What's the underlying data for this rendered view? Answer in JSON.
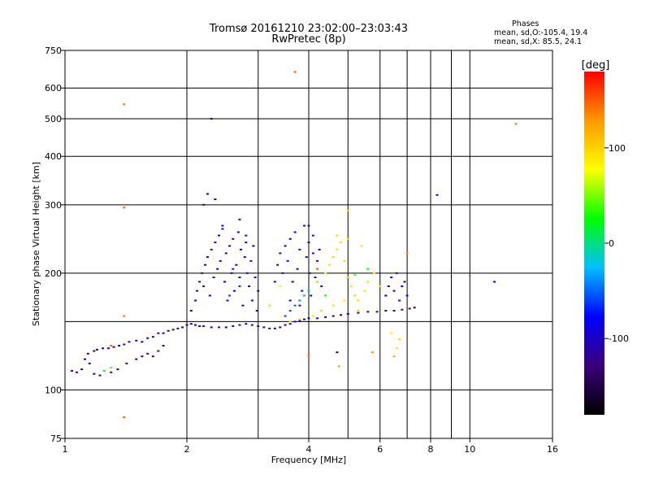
{
  "chart_data": {
    "type": "scatter",
    "title": "Tromsø 20161210 23:02:00–23:03:43",
    "subtitle": "RwPretec (8p)",
    "legend_header": "Phases",
    "legend_lines": [
      "mean, sd,O:-105.4, 19.4",
      "mean, sd,X:  85.5, 24.1"
    ],
    "xlabel": "Frequency [MHz]",
    "ylabel": "Stationary phase Virtual Height [km]",
    "x_scale": "log",
    "y_scale": "log",
    "xlim": [
      1,
      16
    ],
    "ylim": [
      75,
      750
    ],
    "x_ticks": [
      1,
      2,
      4,
      6,
      8,
      10,
      16
    ],
    "y_ticks": [
      75,
      100,
      200,
      300,
      400,
      500,
      600,
      750
    ],
    "x_grid": [
      1,
      2,
      3,
      4,
      5,
      6,
      7,
      8,
      9,
      10,
      16
    ],
    "y_grid": [
      100,
      150,
      200,
      300,
      400,
      500,
      600
    ],
    "grid": true,
    "colorbar": {
      "label": "[deg]",
      "range": [
        -180,
        180
      ],
      "ticks": [
        100,
        0,
        -100
      ],
      "colors": [
        "#000000",
        "#3a007a",
        "#0000ff",
        "#00bfff",
        "#00ff00",
        "#ffff00",
        "#ff9900",
        "#ff0000"
      ]
    },
    "series": [
      {
        "values": [
          [
            1.04,
            112,
            -120
          ],
          [
            1.07,
            111,
            -125
          ],
          [
            1.1,
            113,
            -118
          ],
          [
            1.12,
            120,
            -130
          ],
          [
            1.14,
            124,
            -120
          ],
          [
            1.18,
            126,
            -115
          ],
          [
            1.2,
            127,
            -125
          ],
          [
            1.24,
            128,
            -120
          ],
          [
            1.28,
            128,
            -118
          ],
          [
            1.32,
            129,
            -125
          ],
          [
            1.36,
            130,
            -120
          ],
          [
            1.4,
            131,
            -130
          ],
          [
            1.44,
            133,
            -120
          ],
          [
            1.5,
            134,
            -125
          ],
          [
            1.55,
            133,
            -118
          ],
          [
            1.6,
            136,
            -125
          ],
          [
            1.65,
            137,
            -120
          ],
          [
            1.7,
            140,
            -130
          ],
          [
            1.75,
            140,
            -120
          ],
          [
            1.8,
            142,
            -125
          ],
          [
            1.85,
            143,
            -118
          ],
          [
            1.9,
            144,
            -125
          ],
          [
            1.95,
            145,
            -120
          ],
          [
            2.0,
            147,
            -125
          ],
          [
            2.05,
            148,
            -130
          ],
          [
            2.1,
            147,
            -120
          ],
          [
            2.15,
            146,
            -125
          ],
          [
            2.2,
            146,
            -118
          ],
          [
            2.3,
            145,
            -120
          ],
          [
            2.4,
            145,
            -125
          ],
          [
            2.5,
            145,
            -110
          ],
          [
            2.6,
            146,
            -115
          ],
          [
            2.7,
            147,
            -120
          ],
          [
            2.8,
            148,
            -100
          ],
          [
            2.9,
            147,
            -110
          ],
          [
            3.0,
            146,
            -115
          ],
          [
            3.1,
            145,
            -120
          ],
          [
            3.2,
            144,
            -125
          ],
          [
            3.3,
            144,
            -120
          ],
          [
            3.4,
            145,
            -115
          ],
          [
            3.5,
            147,
            -110
          ],
          [
            3.6,
            148,
            -105
          ],
          [
            3.7,
            150,
            -100
          ],
          [
            3.8,
            151,
            -95
          ],
          [
            3.9,
            152,
            -100
          ],
          [
            4.0,
            153,
            -105
          ],
          [
            4.2,
            153,
            -100
          ],
          [
            4.4,
            154,
            -95
          ],
          [
            4.6,
            155,
            -100
          ],
          [
            4.8,
            156,
            -105
          ],
          [
            5.0,
            157,
            -110
          ],
          [
            5.3,
            158,
            -115
          ],
          [
            5.6,
            159,
            -120
          ],
          [
            5.9,
            159,
            -115
          ],
          [
            6.2,
            160,
            -120
          ],
          [
            6.5,
            160,
            -125
          ],
          [
            6.8,
            161,
            -120
          ],
          [
            7.1,
            162,
            -125
          ],
          [
            7.3,
            163,
            -120
          ]
        ]
      },
      {
        "values": [
          [
            1.15,
            117,
            -120
          ],
          [
            1.18,
            110,
            -125
          ],
          [
            1.22,
            109,
            -130
          ],
          [
            1.3,
            111,
            -120
          ],
          [
            1.35,
            113,
            -125
          ],
          [
            1.42,
            117,
            -118
          ],
          [
            1.5,
            120,
            -125
          ],
          [
            1.55,
            122,
            -120
          ],
          [
            1.6,
            124,
            -115
          ],
          [
            1.65,
            122,
            -125
          ],
          [
            1.7,
            126,
            -118
          ],
          [
            1.75,
            130,
            -120
          ],
          [
            1.3,
            114,
            40
          ],
          [
            1.25,
            112,
            20
          ]
        ]
      },
      {
        "values": [
          [
            2.05,
            160,
            -120
          ],
          [
            2.1,
            170,
            -110
          ],
          [
            2.12,
            180,
            -115
          ],
          [
            2.15,
            190,
            -120
          ],
          [
            2.18,
            200,
            -110
          ],
          [
            2.2,
            185,
            -125
          ],
          [
            2.22,
            210,
            -115
          ],
          [
            2.25,
            220,
            -120
          ],
          [
            2.28,
            175,
            -110
          ],
          [
            2.3,
            230,
            -115
          ],
          [
            2.33,
            195,
            -120
          ],
          [
            2.35,
            240,
            -110
          ],
          [
            2.38,
            205,
            -100
          ],
          [
            2.4,
            250,
            -115
          ],
          [
            2.42,
            215,
            -95
          ],
          [
            2.45,
            260,
            -110
          ],
          [
            2.48,
            190,
            -90
          ],
          [
            2.5,
            225,
            -100
          ],
          [
            2.52,
            170,
            -105
          ],
          [
            2.55,
            235,
            -95
          ],
          [
            2.58,
            200,
            -90
          ],
          [
            2.6,
            245,
            -100
          ],
          [
            2.62,
            180,
            -85
          ],
          [
            2.65,
            210,
            -95
          ],
          [
            2.68,
            255,
            -100
          ],
          [
            2.7,
            195,
            -90
          ],
          [
            2.72,
            230,
            -95
          ],
          [
            2.75,
            165,
            -100
          ],
          [
            2.78,
            220,
            -105
          ],
          [
            2.8,
            240,
            -110
          ],
          [
            2.82,
            200,
            -95
          ],
          [
            2.85,
            185,
            -100
          ],
          [
            2.88,
            215,
            -110
          ],
          [
            2.9,
            170,
            -115
          ],
          [
            2.92,
            235,
            -105
          ],
          [
            2.95,
            195,
            -100
          ],
          [
            2.98,
            160,
            -110
          ],
          [
            3.0,
            180,
            -115
          ],
          [
            2.35,
            310,
            -110
          ],
          [
            2.25,
            320,
            -115
          ],
          [
            2.7,
            275,
            -120
          ],
          [
            2.45,
            265,
            -120
          ],
          [
            2.8,
            250,
            -105
          ],
          [
            2.6,
            205,
            -70
          ],
          [
            2.7,
            185,
            -65
          ],
          [
            2.55,
            175,
            -60
          ]
        ]
      },
      {
        "values": [
          [
            3.3,
            190,
            -115
          ],
          [
            3.35,
            210,
            -110
          ],
          [
            3.4,
            225,
            -115
          ],
          [
            3.45,
            200,
            -120
          ],
          [
            3.5,
            235,
            -110
          ],
          [
            3.55,
            215,
            -115
          ],
          [
            3.6,
            245,
            -110
          ],
          [
            3.65,
            190,
            -105
          ],
          [
            3.7,
            255,
            -110
          ],
          [
            3.75,
            205,
            -100
          ],
          [
            3.8,
            230,
            -110
          ],
          [
            3.85,
            180,
            -105
          ],
          [
            3.9,
            265,
            -115
          ],
          [
            3.95,
            220,
            -110
          ],
          [
            4.0,
            240,
            -120
          ],
          [
            4.02,
            200,
            -110
          ],
          [
            4.05,
            175,
            -105
          ],
          [
            4.1,
            250,
            -110
          ],
          [
            4.15,
            195,
            -100
          ],
          [
            4.2,
            215,
            -95
          ],
          [
            4.25,
            230,
            -100
          ],
          [
            4.3,
            185,
            -105
          ],
          [
            3.6,
            170,
            -110
          ],
          [
            3.8,
            165,
            -100
          ],
          [
            4.0,
            265,
            -115
          ],
          [
            4.1,
            225,
            -90
          ]
        ]
      },
      {
        "values": [
          [
            3.5,
            155,
            -60
          ],
          [
            3.6,
            160,
            -55
          ],
          [
            3.7,
            165,
            -50
          ],
          [
            3.8,
            170,
            -40
          ],
          [
            3.9,
            175,
            -30
          ],
          [
            4.0,
            180,
            -20
          ],
          [
            4.2,
            190,
            50
          ],
          [
            4.4,
            200,
            80
          ],
          [
            4.5,
            210,
            90
          ],
          [
            4.6,
            220,
            100
          ],
          [
            4.7,
            230,
            95
          ],
          [
            4.8,
            240,
            90
          ],
          [
            4.9,
            215,
            100
          ],
          [
            5.0,
            195,
            95
          ],
          [
            5.1,
            185,
            90
          ],
          [
            5.2,
            175,
            100
          ],
          [
            5.3,
            170,
            95
          ],
          [
            5.5,
            180,
            90
          ],
          [
            5.6,
            190,
            100
          ],
          [
            5.8,
            200,
            95
          ],
          [
            6.0,
            185,
            90
          ],
          [
            6.2,
            175,
            100
          ],
          [
            4.3,
            160,
            100
          ],
          [
            4.6,
            165,
            95
          ],
          [
            4.9,
            170,
            90
          ],
          [
            5.3,
            160,
            100
          ],
          [
            3.6,
            150,
            90
          ],
          [
            3.8,
            152,
            100
          ],
          [
            4.1,
            155,
            95
          ],
          [
            4.7,
            250,
            100
          ],
          [
            5.0,
            245,
            95
          ],
          [
            5.4,
            235,
            90
          ],
          [
            6.4,
            140,
            90
          ],
          [
            6.6,
            128,
            95
          ],
          [
            6.7,
            135,
            100
          ],
          [
            3.2,
            165,
            60
          ],
          [
            3.4,
            185,
            70
          ],
          [
            5.2,
            198,
            40
          ],
          [
            5.6,
            205,
            20
          ],
          [
            4.4,
            175,
            30
          ]
        ]
      },
      {
        "values": [
          [
            6.2,
            175,
            -110
          ],
          [
            6.3,
            185,
            -105
          ],
          [
            6.4,
            195,
            -110
          ],
          [
            6.5,
            180,
            -100
          ],
          [
            6.6,
            200,
            -105
          ],
          [
            6.7,
            170,
            -110
          ],
          [
            6.8,
            185,
            -105
          ],
          [
            6.9,
            190,
            -110
          ],
          [
            7.0,
            175,
            -100
          ]
        ]
      },
      {
        "values": [
          [
            1.4,
            545,
            140
          ],
          [
            1.4,
            295,
            150
          ],
          [
            1.4,
            155,
            140
          ],
          [
            1.4,
            85,
            150
          ],
          [
            1.3,
            130,
            150
          ],
          [
            3.7,
            660,
            150
          ],
          [
            2.3,
            500,
            -110
          ],
          [
            2.2,
            300,
            -110
          ],
          [
            13,
            485,
            140
          ],
          [
            8.3,
            318,
            -90
          ],
          [
            11.5,
            190,
            -80
          ],
          [
            4.0,
            123,
            140
          ],
          [
            4.75,
            115,
            130
          ],
          [
            5.75,
            125,
            130
          ],
          [
            6.5,
            122,
            120
          ],
          [
            7.0,
            225,
            130
          ],
          [
            5.0,
            290,
            100
          ],
          [
            4.2,
            205,
            150
          ],
          [
            4.7,
            125,
            -150
          ]
        ]
      }
    ]
  }
}
